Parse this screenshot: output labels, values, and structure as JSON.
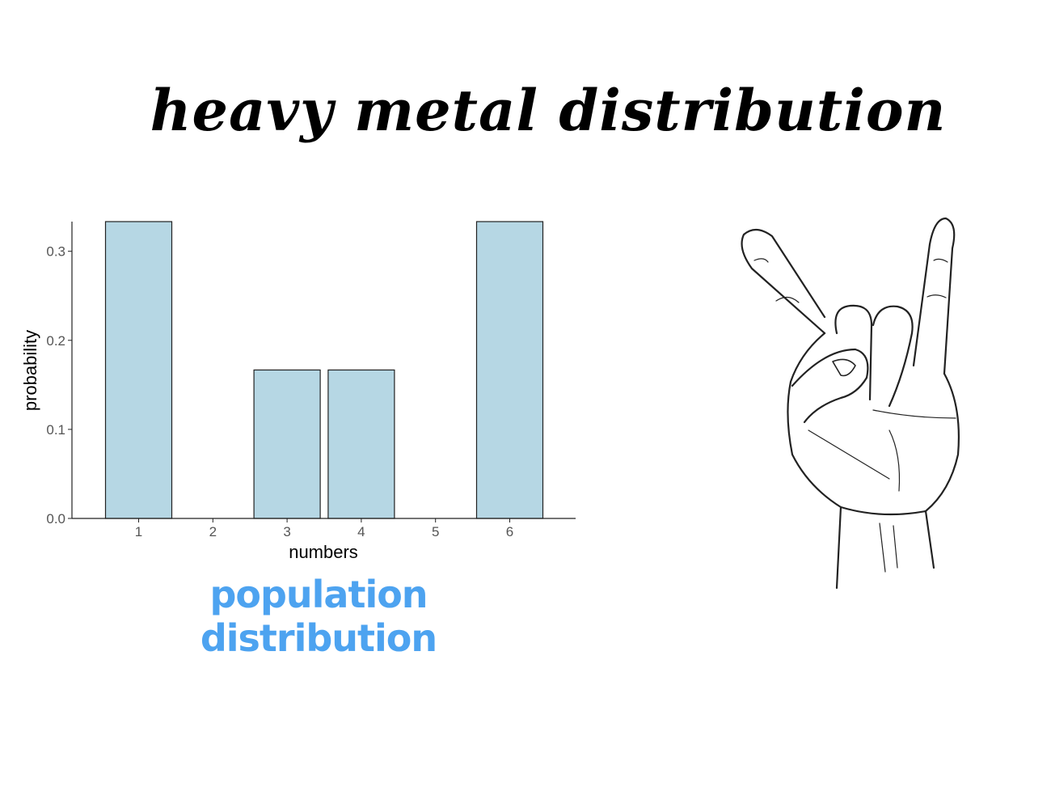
{
  "slide": {
    "title": "heavy metal distribution",
    "caption": "population distribution"
  },
  "chart_data": {
    "type": "bar",
    "categories": [
      "1",
      "2",
      "3",
      "4",
      "5",
      "6"
    ],
    "values": [
      0.3333,
      0,
      0.1667,
      0.1667,
      0,
      0.3333
    ],
    "xlabel": "numbers",
    "ylabel": "probability",
    "ylim": [
      0,
      0.3333
    ],
    "yticks": [
      "0.0",
      "0.1",
      "0.2",
      "0.3"
    ],
    "bar_color": "#b6d7e4",
    "bar_edge_color": "#222222",
    "grid": false
  },
  "illustration": {
    "icon": "rock-hand-sign-icon"
  }
}
